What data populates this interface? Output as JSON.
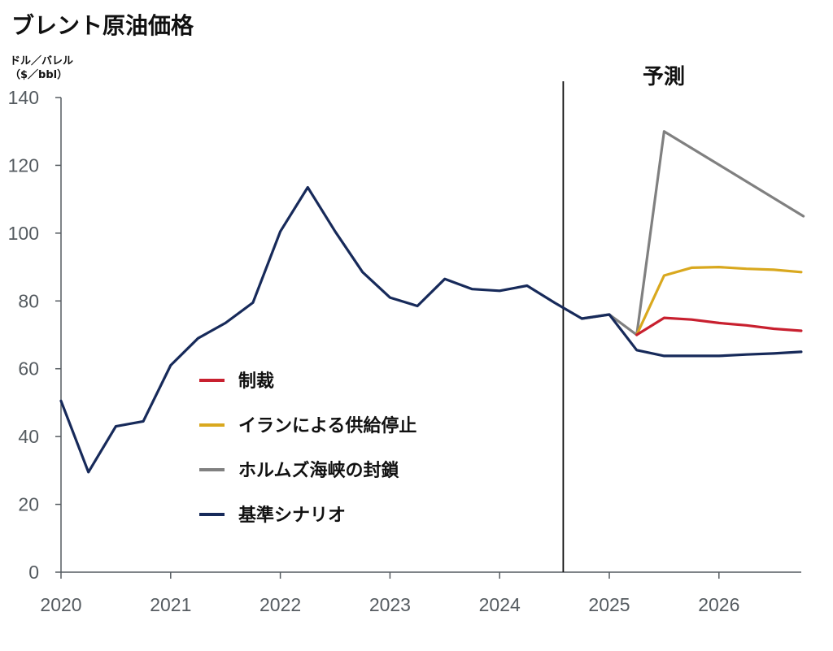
{
  "chart_data": {
    "type": "line",
    "title": "ブレント原油価格",
    "unit_label_line1": "ドル／バレル",
    "unit_label_line2": "（$／bbl）",
    "forecast_label": "予測",
    "forecast_start": 2024.58,
    "xlim": [
      2020,
      2026.77
    ],
    "ylim": [
      0,
      140
    ],
    "x_ticks": [
      "2020",
      "2021",
      "2022",
      "2023",
      "2024",
      "2025",
      "2026"
    ],
    "y_ticks": [
      "0",
      "20",
      "40",
      "60",
      "80",
      "100",
      "120",
      "140"
    ],
    "grid": false,
    "legend_position": "center-left",
    "series": [
      {
        "name": "基準シナリオ",
        "color": "#172a5a",
        "x": [
          2020,
          2020.25,
          2020.5,
          2020.75,
          2021,
          2021.25,
          2021.5,
          2021.75,
          2022,
          2022.25,
          2022.5,
          2022.75,
          2023,
          2023.25,
          2023.5,
          2023.75,
          2024,
          2024.25,
          2024.5,
          2024.75,
          2025,
          2025.25,
          2025.5,
          2025.75,
          2026,
          2026.25,
          2026.5,
          2026.75
        ],
        "y": [
          50.5,
          29.5,
          43,
          44.5,
          61,
          69,
          73.5,
          79.5,
          100.5,
          113.5,
          100.5,
          88.5,
          81,
          78.5,
          86.5,
          83.5,
          83,
          84.5,
          79.5,
          74.8,
          76,
          65.5,
          63.8,
          63.8,
          63.8,
          64.2,
          64.5,
          65
        ]
      },
      {
        "name": "制裁",
        "color": "#c8202f",
        "x": [
          2025.25,
          2025.5,
          2025.75,
          2026,
          2026.25,
          2026.5,
          2026.75
        ],
        "y": [
          70,
          75,
          74.5,
          73.5,
          72.8,
          71.8,
          71.2
        ]
      },
      {
        "name": "イランによる供給停止",
        "color": "#d9a81e",
        "x": [
          2025.25,
          2025.5,
          2025.75,
          2026,
          2026.25,
          2026.5,
          2026.75
        ],
        "y": [
          70,
          87.5,
          89.8,
          90,
          89.5,
          89.2,
          88.5
        ]
      },
      {
        "name": "ホルムズ海峡の封鎖",
        "color": "#808080",
        "x": [
          2024.75,
          2025,
          2025.25,
          2025.5,
          2026.77
        ],
        "y": [
          74.8,
          76,
          70,
          130,
          105
        ]
      }
    ],
    "legend_order": [
      "制裁",
      "イランによる供給停止",
      "ホルムズ海峡の封鎖",
      "基準シナリオ"
    ]
  }
}
